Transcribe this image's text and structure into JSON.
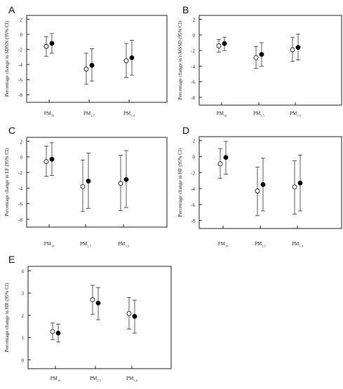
{
  "chart_data": [
    {
      "type": "scatter",
      "panel": "A",
      "ylabel": "Percentage change in SDNN (95% CI)",
      "ylim": [
        -9,
        2.5
      ],
      "yticks": [
        2,
        0,
        -2,
        -4,
        -6,
        -8
      ],
      "ytick_labels": [
        "2",
        "0",
        "-2",
        "-4",
        "-6",
        "-8"
      ],
      "categories": [
        {
          "main": "PM",
          "sub": "10"
        },
        {
          "main": "PM",
          "sub": "2.5"
        },
        {
          "main": "PM",
          "sub": "1.0"
        }
      ],
      "series": [
        {
          "marker": "open",
          "values": [
            {
              "y": -1.6,
              "lo": -2.9,
              "hi": -0.3
            },
            {
              "y": -4.6,
              "lo": -6.6,
              "hi": -2.5
            },
            {
              "y": -3.5,
              "lo": -5.7,
              "hi": -1.2
            }
          ]
        },
        {
          "marker": "filled",
          "values": [
            {
              "y": -1.2,
              "lo": -2.5,
              "hi": 0.1
            },
            {
              "y": -4.1,
              "lo": -6.2,
              "hi": -1.9
            },
            {
              "y": -3.1,
              "lo": -5.4,
              "hi": -0.8
            }
          ]
        }
      ]
    },
    {
      "type": "scatter",
      "panel": "B",
      "ylabel": "Percentage change in r-MSSD (95% CI)",
      "ylim": [
        -9,
        2.5
      ],
      "yticks": [
        2,
        0,
        -2,
        -4,
        -6,
        -8
      ],
      "ytick_labels": [
        "2",
        "0",
        "-2",
        "-4",
        "-6",
        "-8"
      ],
      "categories": [
        {
          "main": "PM",
          "sub": "10"
        },
        {
          "main": "PM",
          "sub": "2.5"
        },
        {
          "main": "PM",
          "sub": "1.0"
        }
      ],
      "series": [
        {
          "marker": "open",
          "values": [
            {
              "y": -1.4,
              "lo": -2.2,
              "hi": -0.6
            },
            {
              "y": -2.9,
              "lo": -4.3,
              "hi": -1.5
            },
            {
              "y": -1.9,
              "lo": -3.4,
              "hi": -0.3
            }
          ]
        },
        {
          "marker": "filled",
          "values": [
            {
              "y": -1.1,
              "lo": -2.0,
              "hi": -0.3
            },
            {
              "y": -2.5,
              "lo": -4.0,
              "hi": -1.0
            },
            {
              "y": -1.6,
              "lo": -3.2,
              "hi": 0.1
            }
          ]
        }
      ]
    },
    {
      "type": "scatter",
      "panel": "C",
      "ylabel": "Percentage change in LF (95% CI)",
      "ylim": [
        -9,
        2.5
      ],
      "yticks": [
        2,
        0,
        -2,
        -4,
        -6,
        -8
      ],
      "ytick_labels": [
        "2",
        "0",
        "-2",
        "-4",
        "-6",
        "-8"
      ],
      "categories": [
        {
          "main": "PM",
          "sub": "10"
        },
        {
          "main": "PM",
          "sub": "2.5"
        },
        {
          "main": "PM",
          "sub": "1.0"
        }
      ],
      "series": [
        {
          "marker": "open",
          "values": [
            {
              "y": -0.6,
              "lo": -2.5,
              "hi": 1.4
            },
            {
              "y": -3.8,
              "lo": -7.0,
              "hi": -0.4
            },
            {
              "y": -3.4,
              "lo": -6.9,
              "hi": 0.2
            }
          ]
        },
        {
          "marker": "filled",
          "values": [
            {
              "y": -0.3,
              "lo": -2.4,
              "hi": 1.8
            },
            {
              "y": -3.1,
              "lo": -6.6,
              "hi": 0.5
            },
            {
              "y": -2.9,
              "lo": -6.5,
              "hi": 0.8
            }
          ]
        }
      ]
    },
    {
      "type": "scatter",
      "panel": "D",
      "ylabel": "Percentage change in HF (95% CI)",
      "ylim": [
        -9,
        2.5
      ],
      "yticks": [
        2,
        0,
        -2,
        -4,
        -6,
        -8
      ],
      "ytick_labels": [
        "2",
        "0",
        "-2",
        "-4",
        "-6",
        "-8"
      ],
      "categories": [
        {
          "main": "PM",
          "sub": "10"
        },
        {
          "main": "PM",
          "sub": "2.5"
        },
        {
          "main": "PM",
          "sub": "1.0"
        }
      ],
      "series": [
        {
          "marker": "open",
          "values": [
            {
              "y": -0.9,
              "lo": -2.7,
              "hi": 1.0
            },
            {
              "y": -4.3,
              "lo": -7.4,
              "hi": -1.3
            },
            {
              "y": -3.8,
              "lo": -7.2,
              "hi": -0.5
            }
          ]
        },
        {
          "marker": "filled",
          "values": [
            {
              "y": -0.1,
              "lo": -2.2,
              "hi": 1.9
            },
            {
              "y": -3.5,
              "lo": -6.8,
              "hi": -0.2
            },
            {
              "y": -3.3,
              "lo": -6.8,
              "hi": 0.2
            }
          ]
        }
      ]
    },
    {
      "type": "scatter",
      "panel": "E",
      "ylabel": "Percentage change in HR (95% CI)",
      "ylim": [
        -0.4,
        4.2
      ],
      "yticks": [
        4,
        3,
        2,
        1,
        0
      ],
      "ytick_labels": [
        "4",
        "3",
        "2",
        "1",
        "0"
      ],
      "categories": [
        {
          "main": "PM",
          "sub": "10"
        },
        {
          "main": "PM",
          "sub": "2.5"
        },
        {
          "main": "PM",
          "sub": "1.0"
        }
      ],
      "series": [
        {
          "marker": "open",
          "values": [
            {
              "y": 1.27,
              "lo": 0.9,
              "hi": 1.65
            },
            {
              "y": 2.7,
              "lo": 2.05,
              "hi": 3.35
            },
            {
              "y": 2.08,
              "lo": 1.38,
              "hi": 2.8
            }
          ]
        },
        {
          "marker": "filled",
          "values": [
            {
              "y": 1.2,
              "lo": 0.8,
              "hi": 1.6
            },
            {
              "y": 2.55,
              "lo": 1.8,
              "hi": 3.25
            },
            {
              "y": 1.95,
              "lo": 1.2,
              "hi": 2.68
            }
          ]
        }
      ]
    }
  ]
}
